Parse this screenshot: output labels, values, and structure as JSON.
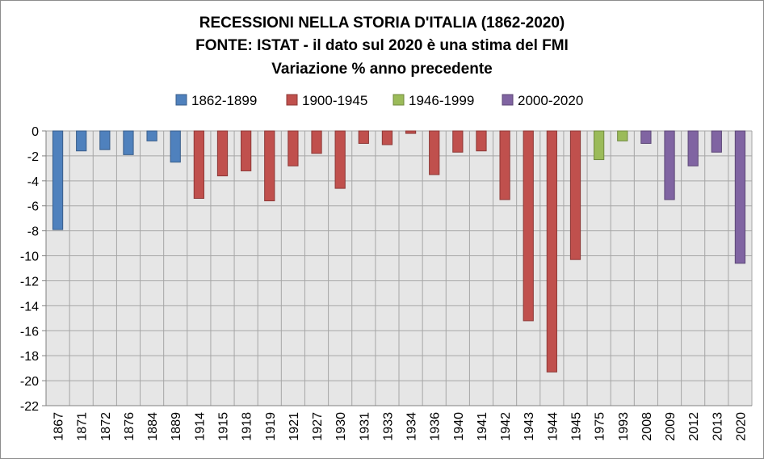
{
  "chart_data": {
    "type": "bar",
    "title_lines": [
      "RECESSIONI NELLA STORIA D'ITALIA (1862-2020)",
      "FONTE: ISTAT - il dato sul 2020 è una stima del FMI",
      "Variazione % anno precedente"
    ],
    "xlabel": "",
    "ylabel": "",
    "ylim": [
      -22,
      0
    ],
    "y_ticks": [
      "0",
      "-2",
      "-4",
      "-6",
      "-8",
      "-10",
      "-12",
      "-14",
      "-16",
      "-18",
      "-20",
      "-22"
    ],
    "grid": true,
    "legend_position": "top",
    "categories": [
      "1867",
      "1871",
      "1872",
      "1876",
      "1884",
      "1889",
      "1914",
      "1915",
      "1918",
      "1919",
      "1921",
      "1927",
      "1930",
      "1931",
      "1933",
      "1934",
      "1936",
      "1940",
      "1941",
      "1942",
      "1943",
      "1944",
      "1945",
      "1975",
      "1993",
      "2008",
      "2009",
      "2012",
      "2013",
      "2020"
    ],
    "values": [
      -7.9,
      -1.6,
      -1.5,
      -1.9,
      -0.8,
      -2.5,
      -5.4,
      -3.6,
      -3.2,
      -5.6,
      -2.8,
      -1.8,
      -4.6,
      -1.0,
      -1.1,
      -0.2,
      -3.5,
      -1.7,
      -1.6,
      -5.5,
      -15.2,
      -19.3,
      -10.3,
      -2.3,
      -0.8,
      -1.0,
      -5.5,
      -2.8,
      -1.7,
      -10.6
    ],
    "series_index": [
      0,
      0,
      0,
      0,
      0,
      0,
      1,
      1,
      1,
      1,
      1,
      1,
      1,
      1,
      1,
      1,
      1,
      1,
      1,
      1,
      1,
      1,
      1,
      2,
      2,
      3,
      3,
      3,
      3,
      3
    ],
    "series": [
      {
        "name": "1862-1899",
        "color": "#4F81BD",
        "stroke": "#385D8A"
      },
      {
        "name": "1900-1945",
        "color": "#C0504D",
        "stroke": "#8C3836"
      },
      {
        "name": "1946-1999",
        "color": "#9BBB59",
        "stroke": "#71893F"
      },
      {
        "name": "2000-2020",
        "color": "#8064A2",
        "stroke": "#5C4776"
      }
    ],
    "plot_background": "#E6E6E6",
    "grid_color": "#A6A6A6"
  }
}
